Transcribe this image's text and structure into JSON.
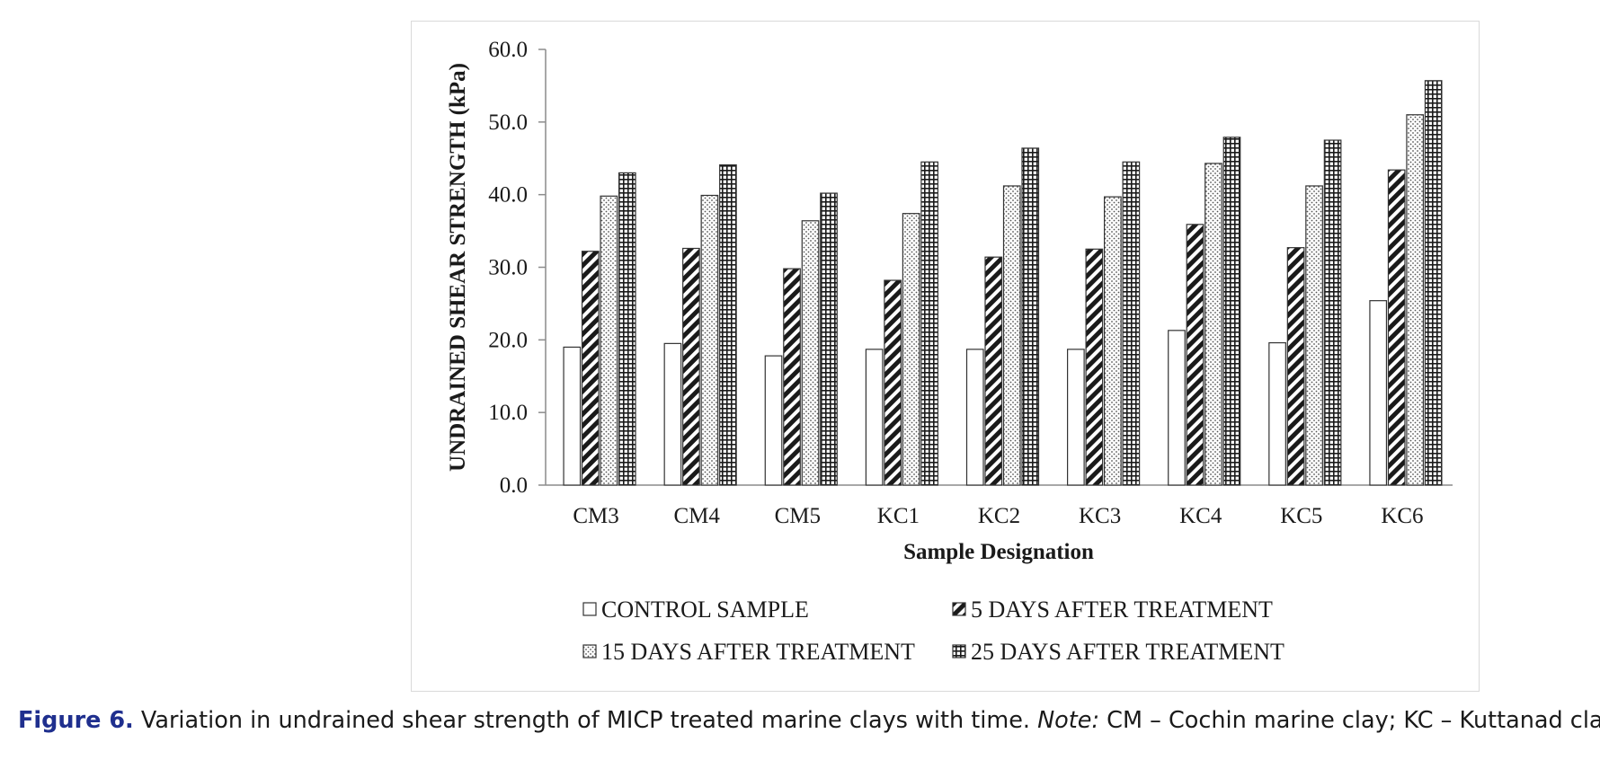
{
  "chart_data": {
    "type": "bar",
    "xlabel": "Sample Designation",
    "ylabel": "UNDRAINED SHEAR STRENGTH (kPa)",
    "ylim": [
      0,
      60
    ],
    "yticks": [
      "0.0",
      "10.0",
      "20.0",
      "30.0",
      "40.0",
      "50.0",
      "60.0"
    ],
    "categories": [
      "CM3",
      "CM4",
      "CM5",
      "KC1",
      "KC2",
      "KC3",
      "KC4",
      "KC5",
      "KC6"
    ],
    "series": [
      {
        "name": "CONTROL SAMPLE",
        "pattern": "plain",
        "values": [
          19.0,
          19.5,
          17.8,
          18.7,
          18.7,
          18.7,
          21.3,
          19.6,
          25.4
        ]
      },
      {
        "name": "5 DAYS AFTER TREATMENT",
        "pattern": "diagonal",
        "values": [
          32.2,
          32.6,
          29.8,
          28.2,
          31.4,
          32.5,
          35.9,
          32.7,
          43.4
        ]
      },
      {
        "name": "15 DAYS AFTER TREATMENT",
        "pattern": "dots",
        "values": [
          39.8,
          39.9,
          36.4,
          37.4,
          41.2,
          39.7,
          44.3,
          41.2,
          51.0
        ]
      },
      {
        "name": "25 DAYS AFTER TREATMENT",
        "pattern": "grid",
        "values": [
          43.0,
          44.1,
          40.2,
          44.5,
          46.4,
          44.5,
          47.9,
          47.5,
          55.7
        ]
      }
    ],
    "grid": false,
    "legend_position": "bottom"
  },
  "caption": {
    "label": "Figure 6.",
    "text": " Variation in undrained shear strength of MICP treated marine clays with time. ",
    "note_label": "Note:",
    "note_text": " CM – Cochin marine clay; KC – Kuttanad clay."
  }
}
